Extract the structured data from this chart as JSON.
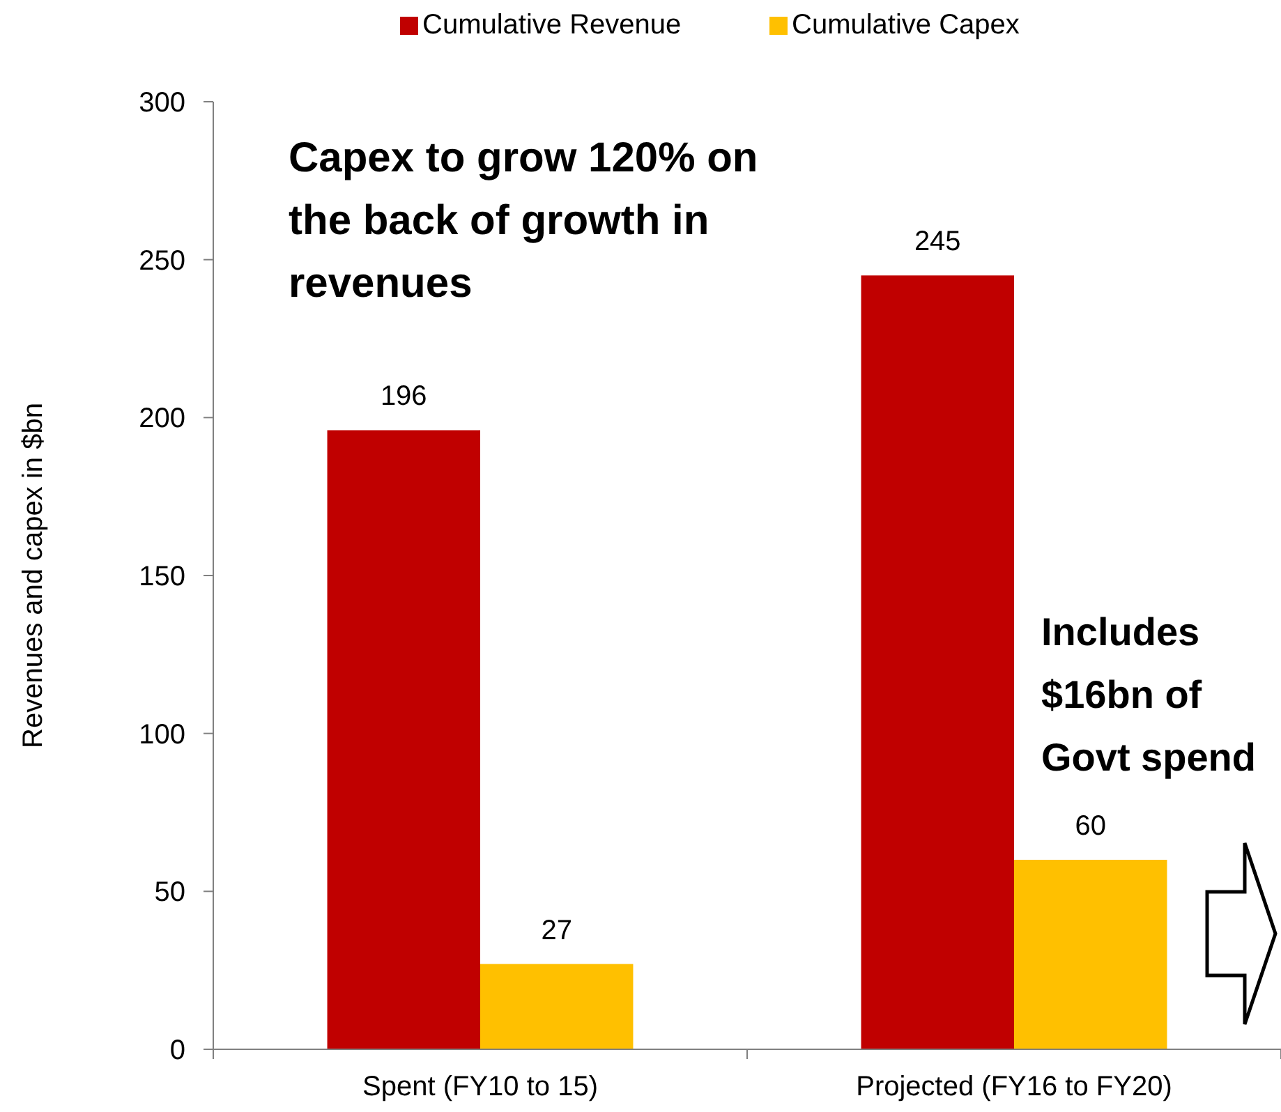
{
  "chart_data": {
    "type": "bar",
    "ylabel": "Revenues and capex in $bn",
    "categories": [
      "Spent (FY10 to 15)",
      "Projected (FY16 to FY20)"
    ],
    "series": [
      {
        "name": "Cumulative Revenue",
        "color": "#c00000",
        "values": [
          196,
          245
        ]
      },
      {
        "name": "Cumulative Capex",
        "color": "#ffc000",
        "values": [
          27,
          60
        ]
      }
    ],
    "ylim": [
      0,
      300
    ],
    "yticks": [
      0,
      50,
      100,
      150,
      200,
      250,
      300
    ],
    "grid": false,
    "legend": "top",
    "data_labels": true,
    "annotations": [
      "Capex to grow 120% on the back of growth in revenues",
      "Includes $16bn of Govt spend"
    ]
  }
}
